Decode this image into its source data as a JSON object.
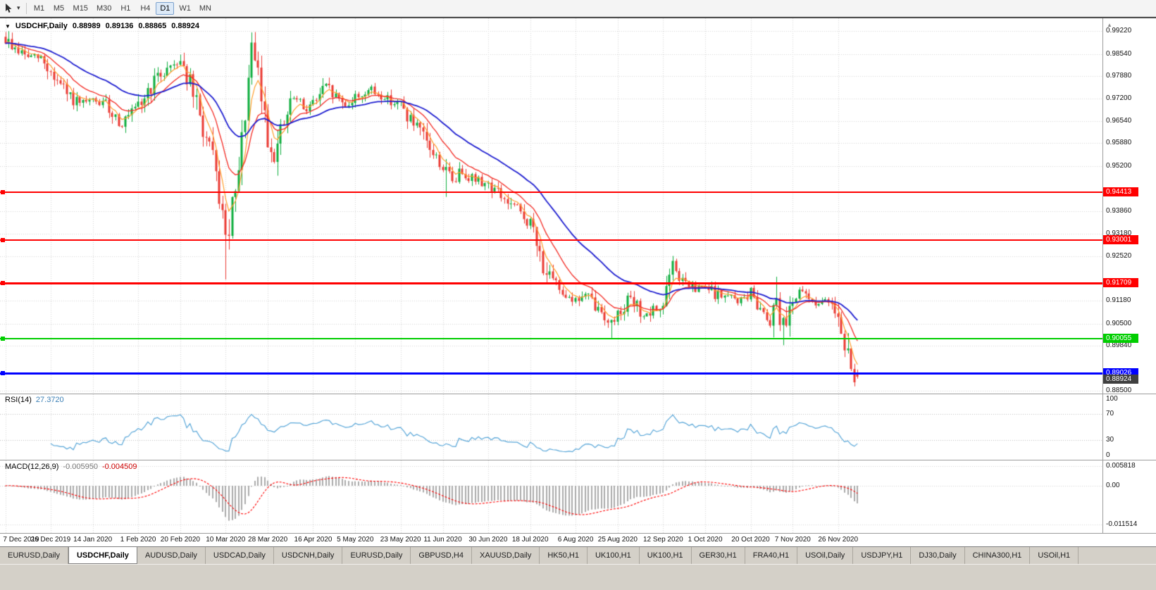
{
  "toolbar": {
    "timeframes": [
      "M1",
      "M5",
      "M15",
      "M30",
      "H1",
      "H4",
      "D1",
      "W1",
      "MN"
    ],
    "selected_timeframe": "D1"
  },
  "chart": {
    "title": {
      "symbol_period": "USDCHF,Daily",
      "open": "0.88989",
      "high": "0.89136",
      "low": "0.88865",
      "close": "0.88924"
    },
    "price_axis_labels": [
      {
        "text": "0.99220",
        "value": 0.9922
      },
      {
        "text": "0.98540",
        "value": 0.9854
      },
      {
        "text": "0.97880",
        "value": 0.9788
      },
      {
        "text": "0.97200",
        "value": 0.972
      },
      {
        "text": "0.96540",
        "value": 0.9654
      },
      {
        "text": "0.95880",
        "value": 0.9588
      },
      {
        "text": "0.95200",
        "value": 0.952
      },
      {
        "text": "0.93860",
        "value": 0.9386
      },
      {
        "text": "0.93180",
        "value": 0.9318
      },
      {
        "text": "0.92520",
        "value": 0.9252
      },
      {
        "text": "0.91180",
        "value": 0.9118
      },
      {
        "text": "0.90500",
        "value": 0.905
      },
      {
        "text": "0.89840",
        "value": 0.8984
      },
      {
        "text": "0.88500",
        "value": 0.885
      }
    ],
    "levels": [
      {
        "label": "0.94413",
        "value": 0.94413,
        "color": "#ff0000",
        "width": 2
      },
      {
        "label": "0.93001",
        "value": 0.93001,
        "color": "#ff0000",
        "width": 2
      },
      {
        "label": "0.91709",
        "value": 0.91709,
        "color": "#ff0000",
        "width": 3
      },
      {
        "label": "0.90055",
        "value": 0.90055,
        "color": "#00ce00",
        "width": 2
      },
      {
        "label": "0.89026",
        "value": 0.89026,
        "color": "#0000ff",
        "width": 3
      }
    ],
    "current_price": {
      "label": "0.88924",
      "value": 0.88924,
      "color": "#404040"
    },
    "date_axis_labels": [
      "7 Dec 2019",
      "26 Dec 2019",
      "14 Jan 2020",
      "1 Feb 2020",
      "20 Feb 2020",
      "10 Mar 2020",
      "28 Mar 2020",
      "16 Apr 2020",
      "5 May 2020",
      "23 May 2020",
      "11 Jun 2020",
      "30 Jun 2020",
      "18 Jul 2020",
      "6 Aug 2020",
      "25 Aug 2020",
      "12 Sep 2020",
      "1 Oct 2020",
      "20 Oct 2020",
      "7 Nov 2020",
      "26 Nov 2020"
    ]
  },
  "rsi_panel": {
    "name": "RSI(14)",
    "value": "27.3720",
    "axis_labels": [
      {
        "text": "100",
        "value": 100
      },
      {
        "text": "70",
        "value": 70
      },
      {
        "text": "30",
        "value": 30
      },
      {
        "text": "0",
        "value": 0
      }
    ],
    "guide_levels": [
      70,
      30
    ]
  },
  "macd_panel": {
    "name": "MACD(12,26,9)",
    "main_value": "-0.005950",
    "signal_value": "-0.004509",
    "axis_labels": [
      {
        "text": "0.005818",
        "value": 0.005818
      },
      {
        "text": "0.00",
        "value": 0
      },
      {
        "text": "-0.011514",
        "value": -0.011514
      }
    ]
  },
  "tabs": [
    {
      "label": "EURUSD,Daily",
      "active": false
    },
    {
      "label": "USDCHF,Daily",
      "active": true
    },
    {
      "label": "AUDUSD,Daily",
      "active": false
    },
    {
      "label": "USDCAD,Daily",
      "active": false
    },
    {
      "label": "USDCNH,Daily",
      "active": false
    },
    {
      "label": "EURUSD,Daily",
      "active": false
    },
    {
      "label": "GBPUSD,H4",
      "active": false
    },
    {
      "label": "XAUUSD,Daily",
      "active": false
    },
    {
      "label": "HK50,H1",
      "active": false
    },
    {
      "label": "UK100,H1",
      "active": false
    },
    {
      "label": "UK100,H1",
      "active": false
    },
    {
      "label": "GER30,H1",
      "active": false
    },
    {
      "label": "FRA40,H1",
      "active": false
    },
    {
      "label": "USOil,Daily",
      "active": false
    },
    {
      "label": "USDJPY,H1",
      "active": false
    },
    {
      "label": "DJ30,Daily",
      "active": false
    },
    {
      "label": "CHINA300,H1",
      "active": false
    },
    {
      "label": "USOil,H1",
      "active": false
    }
  ],
  "colors": {
    "candle_up": "#0fae3f",
    "candle_down": "#ea3b34",
    "ma_fast": "#ff9e2c",
    "ma_mid": "#f32b24",
    "ma_slow": "#1f1fd0",
    "rsi_line": "#58a6d8",
    "rsi_guide": "#bdbdbd",
    "macd_histogram": "#ababab",
    "macd_signal": "#ff0000",
    "grid": "#d6d6d6",
    "current_price_badge": "#404040"
  },
  "chart_data": {
    "type": "candlestick",
    "symbol": "USDCHF",
    "period": "Daily",
    "current_ohlc": {
      "open": 0.88989,
      "high": 0.89136,
      "low": 0.88865,
      "close": 0.88924
    },
    "price_range": [
      0.8842,
      0.996
    ],
    "num_candles": 264,
    "anchors": [
      [
        0,
        0.9895
      ],
      [
        3,
        0.9868
      ],
      [
        7,
        0.9846
      ],
      [
        11,
        0.984
      ],
      [
        14,
        0.9798
      ],
      [
        19,
        0.9732
      ],
      [
        23,
        0.97
      ],
      [
        27,
        0.9713
      ],
      [
        31,
        0.9702
      ],
      [
        36,
        0.9645
      ],
      [
        41,
        0.9693
      ],
      [
        46,
        0.9772
      ],
      [
        50,
        0.9812
      ],
      [
        54,
        0.984
      ],
      [
        57,
        0.9762
      ],
      [
        60,
        0.9662
      ],
      [
        63,
        0.9565
      ],
      [
        66,
        0.9438
      ],
      [
        68,
        0.9295
      ],
      [
        70,
        0.9382
      ],
      [
        72,
        0.9485
      ],
      [
        74,
        0.9685
      ],
      [
        76,
        0.9855
      ],
      [
        78,
        0.9788
      ],
      [
        81,
        0.9605
      ],
      [
        83,
        0.9545
      ],
      [
        86,
        0.9645
      ],
      [
        89,
        0.9722
      ],
      [
        92,
        0.9692
      ],
      [
        95,
        0.9707
      ],
      [
        99,
        0.9756
      ],
      [
        102,
        0.9726
      ],
      [
        105,
        0.9702
      ],
      [
        108,
        0.9723
      ],
      [
        112,
        0.9746
      ],
      [
        116,
        0.9729
      ],
      [
        122,
        0.9701
      ],
      [
        126,
        0.9642
      ],
      [
        129,
        0.9602
      ],
      [
        132,
        0.9557
      ],
      [
        135,
        0.9517
      ],
      [
        138,
        0.9477
      ],
      [
        141,
        0.9506
      ],
      [
        145,
        0.9479
      ],
      [
        149,
        0.9466
      ],
      [
        152,
        0.9441
      ],
      [
        155,
        0.9409
      ],
      [
        158,
        0.9389
      ],
      [
        162,
        0.9346
      ],
      [
        165,
        0.9252
      ],
      [
        168,
        0.9182
      ],
      [
        172,
        0.9149
      ],
      [
        176,
        0.9119
      ],
      [
        179,
        0.9136
      ],
      [
        182,
        0.9099
      ],
      [
        185,
        0.9076
      ],
      [
        187,
        0.9053
      ],
      [
        189,
        0.9081
      ],
      [
        192,
        0.9123
      ],
      [
        195,
        0.9099
      ],
      [
        198,
        0.9069
      ],
      [
        203,
        0.9109
      ],
      [
        206,
        0.9219
      ],
      [
        209,
        0.9176
      ],
      [
        213,
        0.9149
      ],
      [
        216,
        0.9159
      ],
      [
        219,
        0.9139
      ],
      [
        223,
        0.9129
      ],
      [
        227,
        0.9119
      ],
      [
        230,
        0.9143
      ],
      [
        233,
        0.9099
      ],
      [
        236,
        0.9063
      ],
      [
        238,
        0.9131
      ],
      [
        240,
        0.9051
      ],
      [
        243,
        0.9129
      ],
      [
        246,
        0.9141
      ],
      [
        249,
        0.9119
      ],
      [
        252,
        0.9109
      ],
      [
        255,
        0.9123
      ],
      [
        257,
        0.9081
      ],
      [
        258,
        0.9041
      ],
      [
        259,
        0.8996
      ],
      [
        260,
        0.8951
      ],
      [
        261,
        0.8911
      ],
      [
        262,
        0.8891
      ],
      [
        263,
        0.8892
      ]
    ],
    "spikes": [
      {
        "i": 1,
        "high": 0.9922
      },
      {
        "i": 68,
        "low": 0.9182
      },
      {
        "i": 76,
        "high": 0.9918
      },
      {
        "i": 136,
        "low": 0.9428
      },
      {
        "i": 187,
        "low": 0.9007
      },
      {
        "i": 206,
        "high": 0.9252
      },
      {
        "i": 238,
        "high": 0.919
      },
      {
        "i": 240,
        "low": 0.8986
      },
      {
        "i": 262,
        "low": 0.8865
      }
    ],
    "date_labels": [
      "7 Dec 2019",
      "26 Dec 2019",
      "14 Jan 2020",
      "1 Feb 2020",
      "20 Feb 2020",
      "10 Mar 2020",
      "28 Mar 2020",
      "16 Apr 2020",
      "5 May 2020",
      "23 May 2020",
      "11 Jun 2020",
      "30 Jun 2020",
      "18 Jul 2020",
      "6 Aug 2020",
      "25 Aug 2020",
      "12 Sep 2020",
      "1 Oct 2020",
      "20 Oct 2020",
      "7 Nov 2020",
      "26 Nov 2020"
    ],
    "date_label_indices": [
      0,
      14,
      27,
      41,
      54,
      68,
      81,
      95,
      108,
      122,
      135,
      149,
      162,
      176,
      189,
      203,
      216,
      230,
      243,
      257
    ],
    "key_levels": [
      {
        "price": 0.94413,
        "color": "#ff0000"
      },
      {
        "price": 0.93001,
        "color": "#ff0000"
      },
      {
        "price": 0.91709,
        "color": "#ff0000"
      },
      {
        "price": 0.90055,
        "color": "#00ce00"
      },
      {
        "price": 0.89026,
        "color": "#0000ff"
      }
    ],
    "moving_averages": [
      {
        "type": "EMA",
        "period": 5,
        "color": "#ff9e2c",
        "width": 1.2
      },
      {
        "type": "EMA",
        "period": 13,
        "color": "#f32b24",
        "width": 1.3
      },
      {
        "type": "EMA",
        "period": 34,
        "color": "#1f1fd0",
        "width": 1.8
      }
    ],
    "indicators": {
      "rsi": {
        "period": 14,
        "current": 27.372,
        "levels": [
          30,
          70
        ],
        "range": [
          0,
          100
        ]
      },
      "macd": {
        "fast_ema": 12,
        "slow_ema": 26,
        "signal_period": 9,
        "current_main": -0.00595,
        "current_signal": -0.004509,
        "axis_max_label": 0.005818,
        "axis_min_label": -0.011514,
        "panel_range": [
          -0.014,
          0.0075
        ]
      }
    }
  }
}
